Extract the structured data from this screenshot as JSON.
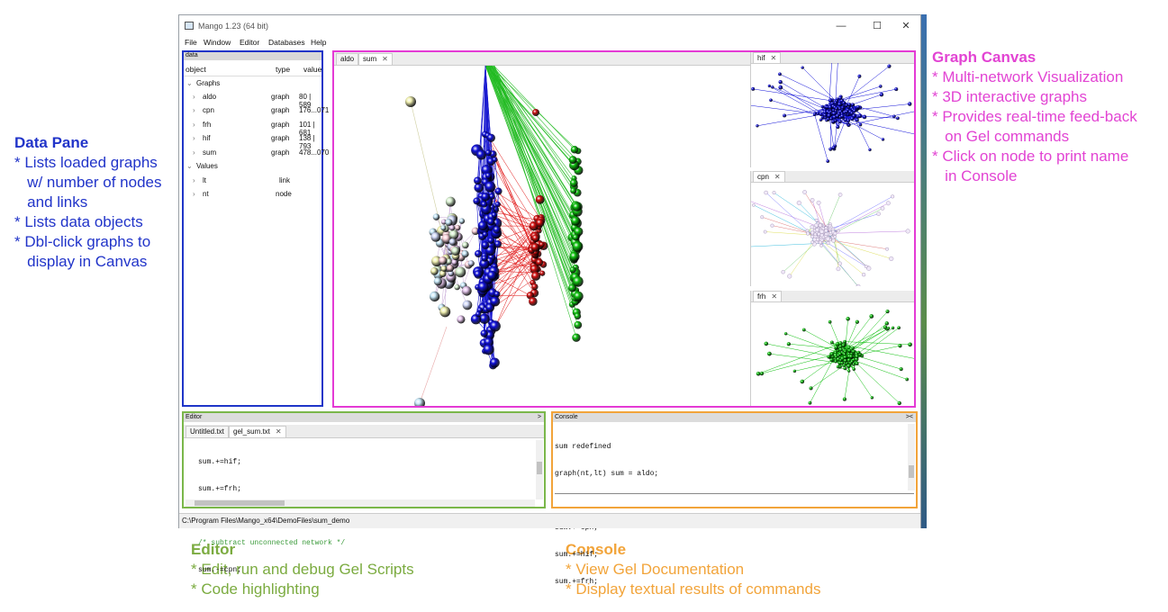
{
  "annotations": {
    "data_pane": {
      "title": "Data Pane",
      "lines": [
        "* Lists loaded graphs",
        "   w/ number of nodes",
        "   and links",
        "* Lists data objects",
        "* Dbl-click graphs to",
        "   display in Canvas"
      ]
    },
    "graph_canvas": {
      "title": "Graph Canvas",
      "lines": [
        "* Multi-network Visualization",
        "* 3D interactive graphs",
        "* Provides real-time feed-back",
        "   on Gel commands",
        "* Click on node to print name",
        "   in Console"
      ]
    },
    "editor": {
      "title": "Editor",
      "lines": [
        "* Edit, run and debug Gel Scripts",
        "* Code highlighting"
      ]
    },
    "console": {
      "title": "Console",
      "lines": [
        "* View Gel Documentation",
        "* Display textual results of commands"
      ]
    }
  },
  "window": {
    "title": "Mango 1.23 (64 bit)",
    "menu": [
      "File",
      "Window",
      "Editor",
      "Databases",
      "Help"
    ],
    "controls": {
      "minimize": "—",
      "maximize": "☐",
      "close": "✕"
    }
  },
  "data_pane": {
    "header": "data",
    "columns": [
      "object",
      "type",
      "value"
    ],
    "groups": [
      {
        "label": "Graphs",
        "items": [
          {
            "name": "aldo",
            "type": "graph",
            "value": "80 | 589"
          },
          {
            "name": "cpn",
            "type": "graph",
            "value": "176...071"
          },
          {
            "name": "frh",
            "type": "graph",
            "value": "101 | 681"
          },
          {
            "name": "hif",
            "type": "graph",
            "value": "138 | 793"
          },
          {
            "name": "sum",
            "type": "graph",
            "value": "478...070"
          }
        ]
      },
      {
        "label": "Values",
        "items": [
          {
            "name": "lt",
            "type": "link",
            "value": ""
          },
          {
            "name": "nt",
            "type": "node",
            "value": ""
          }
        ]
      }
    ]
  },
  "canvas": {
    "tabs": [
      "aldo",
      "sum"
    ],
    "close_glyph": "✕",
    "side_views": [
      "hif",
      "cpn",
      "frh"
    ]
  },
  "editor": {
    "header": "Editor",
    "collapse": ">",
    "tabs": [
      "Untitled.txt",
      "gel_sum.txt"
    ],
    "lines": [
      "sum.+=hif;",
      "sum.+=frh;",
      "",
      "/* subtract unconnected network */",
      "sum.-=cpn;"
    ]
  },
  "console": {
    "header": "Console",
    "collapse": "><",
    "lines": [
      "sum redefined",
      "graph(nt,lt) sum = aldo;",
      "sum redefined",
      "sum.+=cpn;",
      "sum.+=hif;",
      "sum.+=frh;"
    ]
  },
  "statusbar": {
    "path": "C:\\Program Files\\Mango_x64\\DemoFiles\\sum_demo"
  },
  "colors": {
    "data_pane_border": "#1f35c8",
    "canvas_border": "#e43ad5",
    "editor_border": "#7ab74a",
    "console_border": "#f2a43a",
    "series_blue": "#1010d8",
    "series_green": "#10c010",
    "series_red": "#d01010"
  }
}
